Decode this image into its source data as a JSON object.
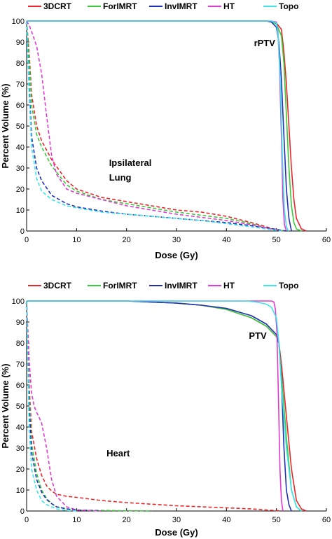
{
  "chart_data": [
    {
      "type": "line",
      "xlabel": "Dose (Gy)",
      "ylabel": "Percent Volume (%)",
      "xlim": [
        0,
        60
      ],
      "ylim": [
        0,
        100
      ],
      "x_ticks": [
        0,
        10,
        20,
        30,
        40,
        50,
        60
      ],
      "y_ticks": [
        0,
        10,
        20,
        30,
        40,
        50,
        60,
        70,
        80,
        90,
        100
      ],
      "grid": false,
      "legend": {
        "placement": "top",
        "entries": [
          "3DCRT",
          "ForIMRT",
          "InvIMRT",
          "HT",
          "Topo"
        ]
      },
      "colors": {
        "3DCRT": "#e8262b",
        "ForIMRT": "#38c93a",
        "InvIMRT": "#1c2fb5",
        "HT": "#e03ad2",
        "Topo": "#3fe3ea"
      },
      "annotations": [
        {
          "text": "rPTV",
          "at": [
            45.5,
            88
          ]
        },
        {
          "text": "Ipsilateral",
          "at": [
            16.5,
            31
          ]
        },
        {
          "text": "Lung",
          "at": [
            16.5,
            24
          ]
        }
      ],
      "series": [
        {
          "name": "3DCRT",
          "structure": "rPTV",
          "style": "solid",
          "x": [
            0,
            48,
            49,
            50,
            51,
            51.5,
            52,
            52.5,
            53,
            53.5,
            54,
            55,
            56
          ],
          "y": [
            100,
            100,
            99.7,
            99,
            96,
            85,
            70,
            50,
            30,
            15,
            6,
            1,
            0
          ]
        },
        {
          "name": "ForIMRT",
          "structure": "rPTV",
          "style": "solid",
          "x": [
            0,
            48,
            49,
            50,
            51,
            51.5,
            52,
            52.5,
            53,
            53.5,
            54,
            55
          ],
          "y": [
            100,
            100,
            99.7,
            98.5,
            93,
            80,
            55,
            30,
            12,
            4,
            1,
            0
          ]
        },
        {
          "name": "InvIMRT",
          "structure": "rPTV",
          "style": "solid",
          "x": [
            0,
            48,
            49,
            50,
            50.5,
            51,
            51.5,
            52,
            52.5,
            53
          ],
          "y": [
            100,
            100,
            99.5,
            97,
            90,
            72,
            45,
            20,
            6,
            0
          ]
        },
        {
          "name": "HT",
          "structure": "rPTV",
          "style": "solid",
          "x": [
            0,
            49,
            50,
            50.3,
            50.6,
            51,
            51.3,
            51.6,
            52
          ],
          "y": [
            100,
            100,
            99.5,
            95,
            80,
            45,
            15,
            3,
            0
          ]
        },
        {
          "name": "Topo",
          "structure": "rPTV",
          "style": "solid",
          "x": [
            0,
            49,
            50,
            50.4,
            50.8,
            51.2,
            51.6,
            52,
            52.4
          ],
          "y": [
            100,
            100,
            99,
            92,
            70,
            35,
            10,
            2,
            0
          ]
        },
        {
          "name": "3DCRT",
          "structure": "Ipsilateral Lung",
          "style": "dashed",
          "x": [
            0,
            0.5,
            1,
            2,
            3,
            5,
            8,
            10,
            15,
            20,
            25,
            30,
            35,
            40,
            45,
            48,
            49,
            50,
            51,
            52
          ],
          "y": [
            100,
            85,
            65,
            50,
            43,
            34,
            24,
            20,
            16,
            14,
            12,
            10,
            9,
            7,
            4,
            2,
            1.2,
            0.6,
            0.2,
            0
          ]
        },
        {
          "name": "ForIMRT",
          "structure": "Ipsilateral Lung",
          "style": "dashed",
          "x": [
            0,
            0.5,
            1,
            2,
            3,
            5,
            8,
            10,
            15,
            20,
            25,
            30,
            35,
            40,
            45,
            48,
            49,
            50,
            51,
            52
          ],
          "y": [
            100,
            82,
            60,
            46,
            40,
            31,
            22,
            19,
            15,
            13,
            11,
            9,
            7.5,
            6,
            3.5,
            1.5,
            1,
            0.5,
            0.2,
            0
          ]
        },
        {
          "name": "InvIMRT",
          "structure": "Ipsilateral Lung",
          "style": "dashed",
          "x": [
            0,
            0.5,
            1,
            2,
            3,
            5,
            8,
            10,
            15,
            20,
            25,
            30,
            35,
            40,
            45,
            48,
            50,
            51,
            52
          ],
          "y": [
            100,
            70,
            45,
            30,
            24,
            17,
            13,
            11.5,
            9.5,
            8,
            7,
            6,
            5,
            4,
            2.5,
            1.5,
            0.8,
            0.3,
            0
          ]
        },
        {
          "name": "HT",
          "structure": "Ipsilateral Lung",
          "style": "dashed",
          "x": [
            0,
            0.5,
            1,
            2,
            3,
            4,
            5,
            6,
            8,
            10,
            15,
            20,
            25,
            30,
            35,
            40,
            45,
            48,
            50,
            51
          ],
          "y": [
            100,
            98,
            95,
            88,
            75,
            55,
            36,
            27,
            20,
            18,
            15,
            12,
            10,
            8,
            6.5,
            5,
            3,
            1.5,
            0.5,
            0
          ]
        },
        {
          "name": "Topo",
          "structure": "Ipsilateral Lung",
          "style": "dashed",
          "x": [
            0,
            0.5,
            1,
            2,
            3,
            5,
            8,
            10,
            15,
            20,
            25,
            30,
            35,
            40,
            45,
            48,
            50,
            51
          ],
          "y": [
            100,
            65,
            40,
            25,
            19,
            15,
            12,
            11,
            9,
            8,
            7,
            6,
            5,
            3.5,
            2,
            1,
            0.3,
            0
          ]
        }
      ]
    },
    {
      "type": "line",
      "xlabel": "Dose (Gy)",
      "ylabel": "Percent Volume (%)",
      "xlim": [
        0,
        60
      ],
      "ylim": [
        0,
        100
      ],
      "x_ticks": [
        0,
        10,
        20,
        30,
        40,
        50,
        60
      ],
      "y_ticks": [
        0,
        10,
        20,
        30,
        40,
        50,
        60,
        70,
        80,
        90,
        100
      ],
      "grid": false,
      "legend": {
        "placement": "top",
        "entries": [
          "3DCRT",
          "ForIMRT",
          "InvIMRT",
          "HT",
          "Topo"
        ]
      },
      "colors": {
        "3DCRT": "#e8262b",
        "ForIMRT": "#38c93a",
        "InvIMRT": "#1c2fb5",
        "HT": "#e03ad2",
        "Topo": "#3fe3ea"
      },
      "annotations": [
        {
          "text": "PTV",
          "at": [
            44.5,
            82
          ]
        },
        {
          "text": "Heart",
          "at": [
            16,
            26
          ]
        }
      ],
      "series": [
        {
          "name": "3DCRT",
          "structure": "PTV",
          "style": "solid",
          "x": [
            0,
            20,
            30,
            35,
            40,
            45,
            48,
            50,
            50.5,
            51,
            52,
            53,
            54,
            55,
            56
          ],
          "y": [
            100,
            100,
            99,
            98,
            96,
            92,
            88,
            83,
            80,
            70,
            45,
            20,
            5,
            1,
            0
          ]
        },
        {
          "name": "ForIMRT",
          "structure": "PTV",
          "style": "solid",
          "x": [
            0,
            20,
            30,
            35,
            40,
            45,
            48,
            50,
            50.5,
            51,
            52,
            53,
            54,
            55
          ],
          "y": [
            100,
            100,
            99,
            98,
            96,
            92,
            88,
            83,
            80,
            65,
            35,
            10,
            2,
            0
          ]
        },
        {
          "name": "InvIMRT",
          "structure": "PTV",
          "style": "solid",
          "x": [
            0,
            20,
            30,
            35,
            40,
            45,
            48,
            50,
            50.5,
            51,
            51.5,
            52,
            52.5,
            53
          ],
          "y": [
            100,
            100,
            99,
            98,
            96.5,
            93,
            89,
            84,
            80,
            62,
            30,
            10,
            3,
            0
          ]
        },
        {
          "name": "HT",
          "structure": "PTV",
          "style": "solid",
          "x": [
            0,
            49,
            49.5,
            49.8,
            50.1,
            50.4,
            50.7,
            51,
            51.3
          ],
          "y": [
            100,
            100,
            99.5,
            96,
            85,
            55,
            20,
            5,
            0
          ]
        },
        {
          "name": "Topo",
          "structure": "PTV",
          "style": "solid",
          "x": [
            0,
            44,
            46,
            48,
            49,
            50,
            50.5,
            51,
            52,
            53,
            54,
            55
          ],
          "y": [
            100,
            100,
            99.5,
            98.5,
            97,
            92,
            80,
            60,
            30,
            10,
            2,
            0
          ]
        },
        {
          "name": "3DCRT",
          "structure": "Heart",
          "style": "dashed",
          "x": [
            0,
            0.5,
            1,
            2,
            3,
            4,
            5,
            6,
            8,
            10,
            15,
            20,
            30,
            40,
            45,
            48,
            50,
            51
          ],
          "y": [
            100,
            60,
            38,
            25,
            17,
            12,
            9.5,
            8,
            7,
            6.5,
            5,
            4,
            2.5,
            1.5,
            1,
            0.5,
            0.2,
            0
          ]
        },
        {
          "name": "ForIMRT",
          "structure": "Heart",
          "style": "dashed",
          "x": [
            0,
            0.5,
            1,
            2,
            3,
            4,
            5,
            6,
            8,
            10,
            15,
            20,
            25
          ],
          "y": [
            100,
            55,
            32,
            18,
            10,
            6,
            3.5,
            2,
            1,
            0.5,
            0.3,
            0.1,
            0
          ]
        },
        {
          "name": "InvIMRT",
          "structure": "Heart",
          "style": "dashed",
          "x": [
            0,
            0.5,
            1,
            2,
            3,
            4,
            5,
            6,
            8,
            10,
            15
          ],
          "y": [
            100,
            50,
            28,
            15,
            9,
            5.5,
            3.5,
            2,
            1,
            0.5,
            0
          ]
        },
        {
          "name": "HT",
          "structure": "Heart",
          "style": "dashed",
          "x": [
            0,
            0.5,
            1,
            1.5,
            2,
            3,
            4,
            5,
            6,
            8,
            10,
            15
          ],
          "y": [
            100,
            72,
            56,
            50,
            47,
            42,
            30,
            15,
            7,
            2,
            0.5,
            0
          ]
        },
        {
          "name": "Topo",
          "structure": "Heart",
          "style": "dashed",
          "x": [
            0,
            0.5,
            1,
            2,
            3,
            4,
            5,
            6,
            8,
            10
          ],
          "y": [
            100,
            40,
            20,
            10,
            5,
            3,
            2,
            1,
            0.3,
            0
          ]
        }
      ]
    }
  ]
}
